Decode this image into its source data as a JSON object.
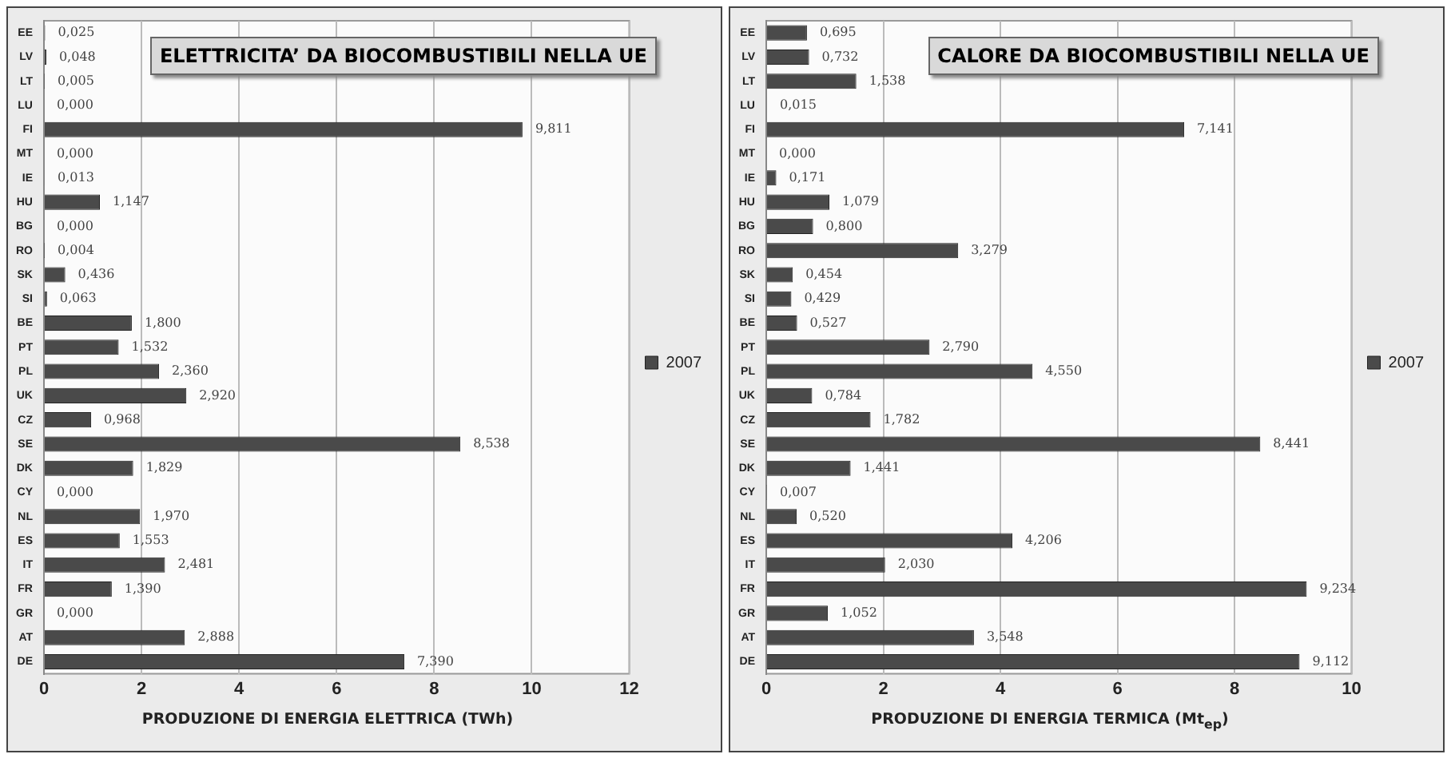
{
  "chart_data": [
    {
      "type": "bar",
      "orientation": "horizontal",
      "title": "ELETTRICITA’ DA BIOCOMBUSTIBILI NELLA UE",
      "xlabel": "PRODUZIONE DI ENERGIA ELETTRICA (TWh)",
      "categories": [
        "EE",
        "LV",
        "LT",
        "LU",
        "FI",
        "MT",
        "IE",
        "HU",
        "BG",
        "RO",
        "SK",
        "SI",
        "BE",
        "PT",
        "PL",
        "UK",
        "CZ",
        "SE",
        "DK",
        "CY",
        "NL",
        "ES",
        "IT",
        "FR",
        "GR",
        "AT",
        "DE"
      ],
      "series": [
        {
          "name": "2007",
          "color": "#4a4a4a",
          "values": [
            0.025,
            0.048,
            0.005,
            0,
            9.811,
            0,
            0.013,
            1.147,
            0,
            0.004,
            0.436,
            0.063,
            1.8,
            1.532,
            2.36,
            2.92,
            0.968,
            8.538,
            1.829,
            0,
            1.97,
            1.553,
            2.481,
            1.39,
            0,
            2.888,
            7.39
          ],
          "value_labels": [
            "0,025",
            "0,048",
            "0,005",
            "0,000",
            "9,811",
            "0,000",
            "0,013",
            "1,147",
            "0,000",
            "0,004",
            "0,436",
            "0,063",
            "1,800",
            "1,532",
            "2,360",
            "2,920",
            "0,968",
            "8,538",
            "1,829",
            "0,000",
            "1,970",
            "1,553",
            "2,481",
            "1,390",
            "0,000",
            "2,888",
            "7,390"
          ]
        }
      ],
      "xlim": [
        0,
        12
      ],
      "xticks": [
        0,
        2,
        4,
        6,
        8,
        10,
        12
      ],
      "grid": "x",
      "legend": "right"
    },
    {
      "type": "bar",
      "orientation": "horizontal",
      "title": "CALORE DA BIOCOMBUSTIBILI NELLA UE",
      "xlabel": "PRODUZIONE DI ENERGIA TERMICA (Mt$_{ep}$)",
      "categories": [
        "EE",
        "LV",
        "LT",
        "LU",
        "FI",
        "MT",
        "IE",
        "HU",
        "BG",
        "RO",
        "SK",
        "SI",
        "BE",
        "PT",
        "PL",
        "UK",
        "CZ",
        "SE",
        "DK",
        "CY",
        "NL",
        "ES",
        "IT",
        "FR",
        "GR",
        "AT",
        "DE"
      ],
      "series": [
        {
          "name": "2007",
          "color": "#4a4a4a",
          "values": [
            0.695,
            0.732,
            1.538,
            0.015,
            7.141,
            0,
            0.171,
            1.079,
            0.8,
            3.279,
            0.454,
            0.429,
            0.527,
            2.79,
            4.55,
            0.784,
            1.782,
            8.441,
            1.441,
            0.007,
            0.52,
            4.206,
            2.03,
            9.234,
            1.052,
            3.548,
            9.112
          ],
          "value_labels": [
            "0,695",
            "0,732",
            "1,538",
            "0,015",
            "7,141",
            "0,000",
            "0,171",
            "1,079",
            "0,800",
            "3,279",
            "0,454",
            "0,429",
            "0,527",
            "2,790",
            "4,550",
            "0,784",
            "1,782",
            "8,441",
            "1,441",
            "0,007",
            "0,520",
            "4,206",
            "2,030",
            "9,234",
            "1,052",
            "3,548",
            "9,112"
          ]
        }
      ],
      "xlim": [
        0,
        10
      ],
      "xticks": [
        0,
        2,
        4,
        6,
        8,
        10
      ],
      "grid": "x",
      "legend": "right"
    }
  ]
}
